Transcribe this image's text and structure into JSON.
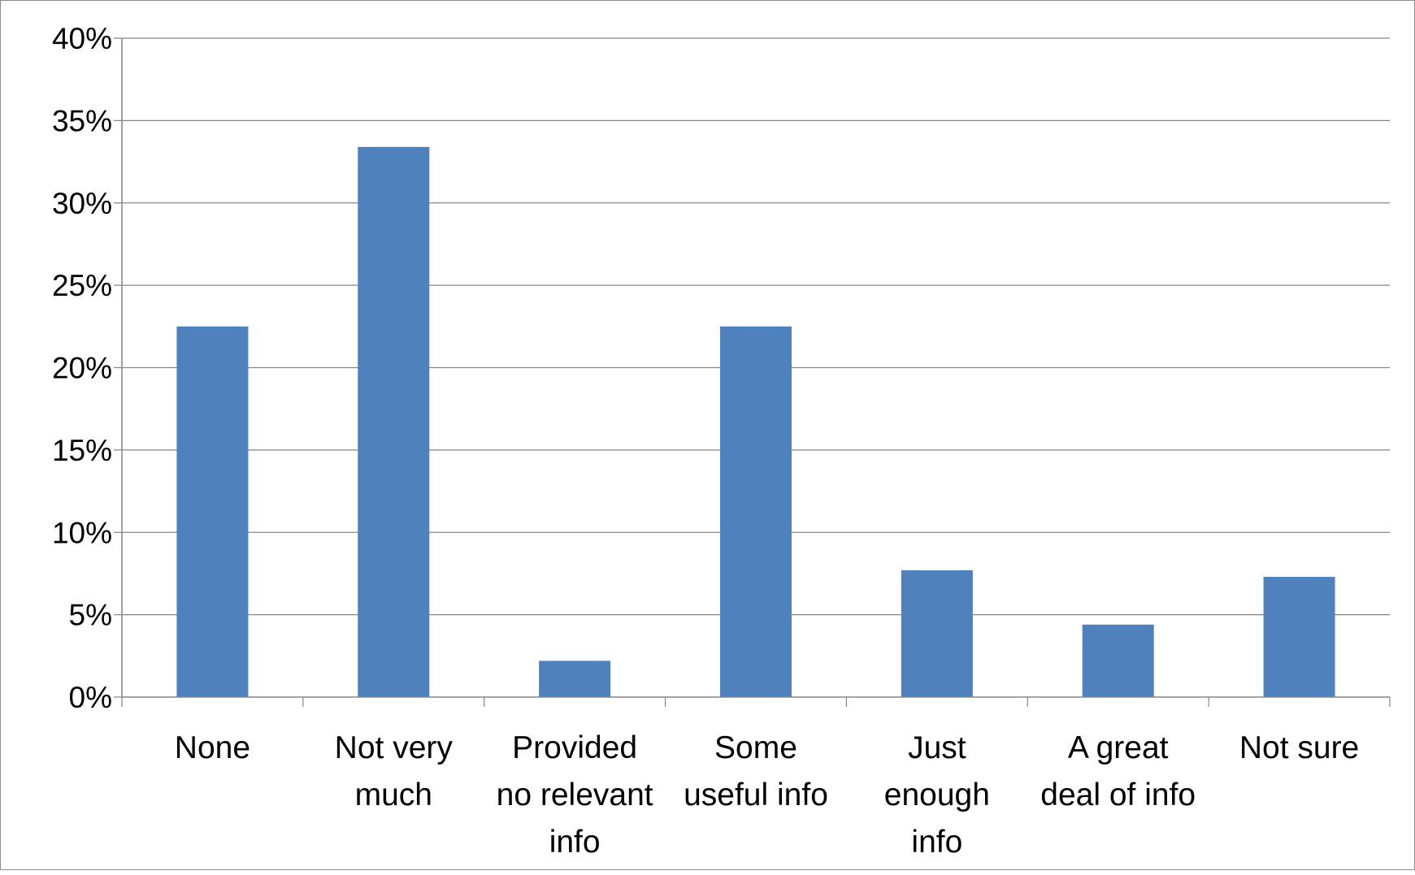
{
  "chart_data": {
    "type": "bar",
    "categories": [
      [
        "None"
      ],
      [
        "Not very",
        "much"
      ],
      [
        "Provided",
        "no relevant",
        "info"
      ],
      [
        "Some",
        "useful info"
      ],
      [
        "Just",
        "enough",
        "info"
      ],
      [
        "A great",
        "deal of info"
      ],
      [
        "Not sure"
      ]
    ],
    "values": [
      22.5,
      33.4,
      2.2,
      22.5,
      7.7,
      4.4,
      7.3
    ],
    "ylim": [
      0,
      40
    ],
    "yticks": [
      "0%",
      "5%",
      "10%",
      "15%",
      "20%",
      "25%",
      "30%",
      "35%",
      "40%"
    ],
    "ytick_values": [
      0,
      5,
      10,
      15,
      20,
      25,
      30,
      35,
      40
    ],
    "grid": true,
    "legend": "none",
    "title": "",
    "xlabel": "",
    "ylabel": "",
    "bar_color": "#4f81bd",
    "grid_color": "#868686"
  }
}
